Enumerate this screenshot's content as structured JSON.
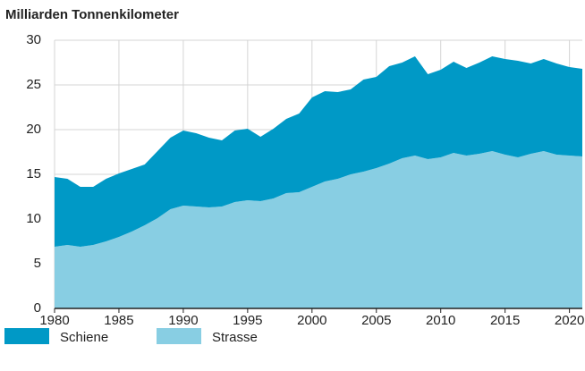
{
  "chart_data": {
    "type": "stacked-area",
    "title": "Milliarden Tonnenkilometer",
    "x": [
      1980,
      1981,
      1982,
      1983,
      1984,
      1985,
      1986,
      1987,
      1988,
      1989,
      1990,
      1991,
      1992,
      1993,
      1994,
      1995,
      1996,
      1997,
      1998,
      1999,
      2000,
      2001,
      2002,
      2003,
      2004,
      2005,
      2006,
      2007,
      2008,
      2009,
      2010,
      2011,
      2012,
      2013,
      2014,
      2015,
      2016,
      2017,
      2018,
      2019,
      2020,
      2021
    ],
    "series": [
      {
        "name": "Strasse",
        "color": "#88cee3",
        "values": [
          6.9,
          7.1,
          6.9,
          7.1,
          7.5,
          8.0,
          8.6,
          9.3,
          10.1,
          11.1,
          11.5,
          11.4,
          11.3,
          11.4,
          11.9,
          12.1,
          12.0,
          12.3,
          12.9,
          13.0,
          13.6,
          14.2,
          14.5,
          15.0,
          15.3,
          15.7,
          16.2,
          16.8,
          17.1,
          16.7,
          16.9,
          17.4,
          17.1,
          17.3,
          17.6,
          17.2,
          16.9,
          17.3,
          17.6,
          17.2,
          17.1,
          17.0
        ]
      },
      {
        "name": "Schiene",
        "color": "#0099c6",
        "values": [
          7.8,
          7.4,
          6.7,
          6.5,
          7.0,
          7.1,
          7.0,
          6.8,
          7.5,
          8.0,
          8.4,
          8.2,
          7.8,
          7.4,
          8.0,
          8.0,
          7.2,
          7.8,
          8.3,
          8.8,
          10.0,
          10.1,
          9.7,
          9.5,
          10.3,
          10.2,
          10.9,
          10.7,
          11.1,
          9.5,
          9.8,
          10.2,
          9.8,
          10.2,
          10.6,
          10.7,
          10.8,
          10.1,
          10.3,
          10.2,
          9.9,
          9.8
        ]
      }
    ],
    "xlim": [
      1980,
      2021
    ],
    "xticks": [
      1980,
      1985,
      1990,
      1995,
      2000,
      2005,
      2010,
      2015,
      2020
    ],
    "ylim": [
      0,
      30
    ],
    "yticks": [
      0,
      5,
      10,
      15,
      20,
      25,
      30
    ],
    "grid": true
  }
}
